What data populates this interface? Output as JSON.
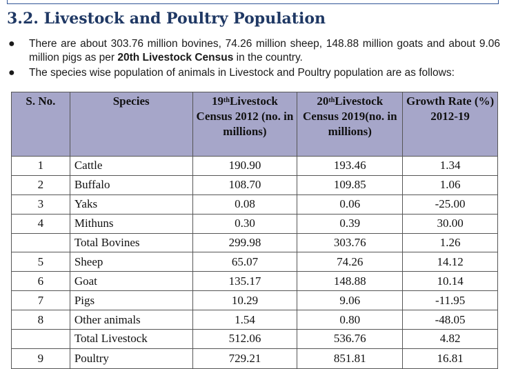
{
  "section_title": "3.2. Livestock and Poultry Population",
  "bullets": {
    "b1_pre": "There are about 303.76 million bovines, 74.26 million sheep, 148.88 million goats and about 9.06 million pigs as per ",
    "b1_bold": "20th Livestock Census",
    "b1_post": " in the country.",
    "b2": "The species wise population of animals in Livestock and Poultry population are as follows:"
  },
  "table": {
    "headers": {
      "sno": "S. No.",
      "species": "Species",
      "c19_num": "19",
      "c19_sup": "th",
      "c19_rest": "Livestock Census 2012 (no. in millions)",
      "c20_num": "20",
      "c20_sup": "th",
      "c20_rest": "Livestock Census 2019(no. in millions)",
      "growth": "Growth Rate (%) 2012-19"
    },
    "rows": [
      {
        "sno": "1",
        "species": "Cattle",
        "c2012": "190.90",
        "c2019": "193.46",
        "growth": "1.34"
      },
      {
        "sno": "2",
        "species": "Buffalo",
        "c2012": "108.70",
        "c2019": "109.85",
        "growth": "1.06"
      },
      {
        "sno": "3",
        "species": "Yaks",
        "c2012": "0.08",
        "c2019": "0.06",
        "growth": "-25.00"
      },
      {
        "sno": "4",
        "species": "Mithuns",
        "c2012": "0.30",
        "c2019": "0.39",
        "growth": "30.00"
      },
      {
        "sno": "",
        "species": "Total Bovines",
        "c2012": "299.98",
        "c2019": "303.76",
        "growth": "1.26"
      },
      {
        "sno": "5",
        "species": "Sheep",
        "c2012": "65.07",
        "c2019": "74.26",
        "growth": "14.12"
      },
      {
        "sno": "6",
        "species": "Goat",
        "c2012": "135.17",
        "c2019": "148.88",
        "growth": "10.14"
      },
      {
        "sno": "7",
        "species": "Pigs",
        "c2012": "10.29",
        "c2019": "9.06",
        "growth": "-11.95"
      },
      {
        "sno": "8",
        "species": "Other animals",
        "c2012": "1.54",
        "c2019": "0.80",
        "growth": "-48.05"
      },
      {
        "sno": "",
        "species": "Total Livestock",
        "c2012": "512.06",
        "c2019": "536.76",
        "growth": "4.82"
      },
      {
        "sno": "9",
        "species": "Poultry",
        "c2012": "729.21",
        "c2019": "851.81",
        "growth": "16.81"
      }
    ]
  },
  "colors": {
    "heading": "#1f3864",
    "header_fill": "#a6a6c9"
  }
}
